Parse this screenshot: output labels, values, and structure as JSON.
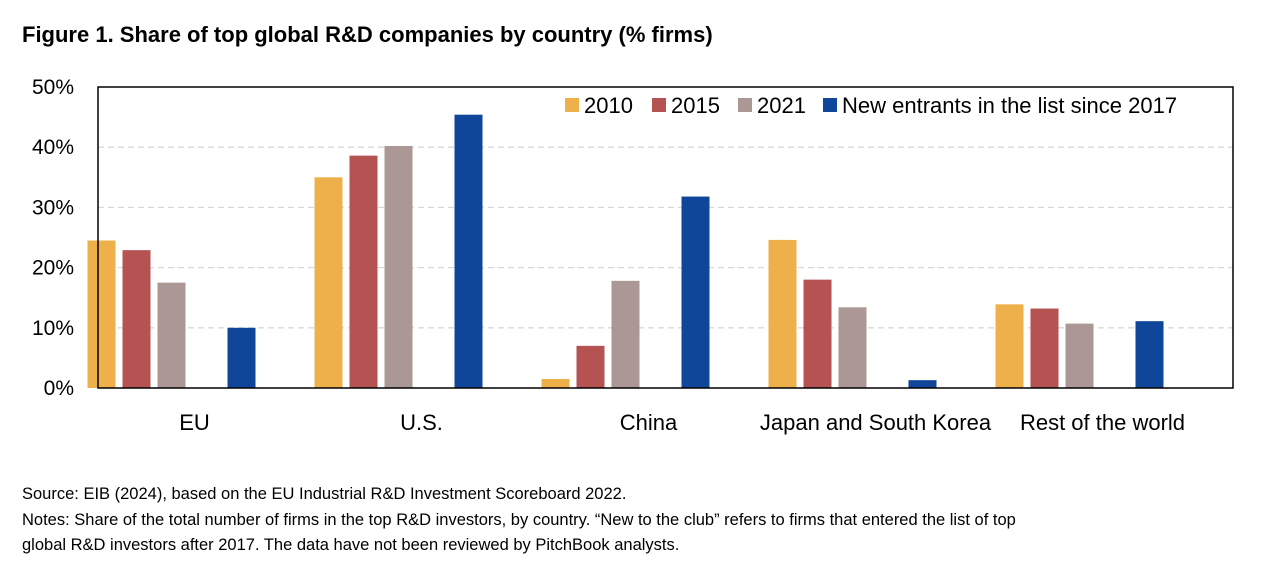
{
  "title": "Figure 1. Share of top global R&D companies by country (% firms)",
  "source": "Source: EIB (2024), based on the EU Industrial R&D Investment Scoreboard 2022.",
  "notes_line1": "Notes: Share of the total number of firms in the top R&D investors, by country. “New to the club” refers to firms that entered the list of top",
  "notes_line2": "global R&D investors after 2017. The data have not been reviewed by PitchBook analysts.",
  "chart_data": {
    "type": "bar",
    "categories": [
      "EU",
      "U.S.",
      "China",
      "Japan and South Korea",
      "Rest of the world"
    ],
    "series": [
      {
        "name": "2010",
        "color": "#EDB04A",
        "values": [
          24.5,
          35.0,
          1.5,
          24.6,
          13.9
        ]
      },
      {
        "name": "2015",
        "color": "#B55252",
        "values": [
          22.9,
          38.6,
          7.0,
          18.0,
          13.2
        ]
      },
      {
        "name": "2021",
        "color": "#AB9793",
        "values": [
          17.5,
          40.2,
          17.8,
          13.4,
          10.7
        ]
      },
      {
        "name": "New entrants in the list since 2017",
        "color": "#0F469A",
        "values": [
          10.0,
          45.4,
          31.8,
          1.3,
          11.1
        ]
      }
    ],
    "ylim": [
      0,
      50
    ],
    "yticks": [
      0,
      10,
      20,
      30,
      40,
      50
    ],
    "ytick_labels": [
      "0%",
      "10%",
      "20%",
      "30%",
      "40%",
      "50%"
    ],
    "grid": true,
    "legend_position": "top-right"
  }
}
